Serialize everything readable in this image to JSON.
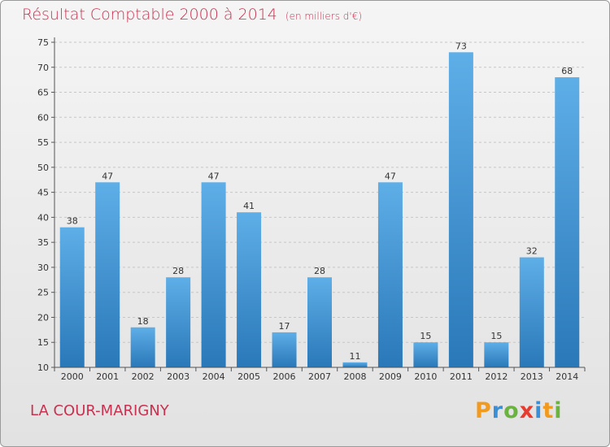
{
  "header": {
    "title": "Résultat Comptable 2000 à 2014",
    "unit": "(en milliers d'€)"
  },
  "footer": {
    "location": "LA COUR-MARIGNY",
    "logo_text": "Proxiti"
  },
  "colors": {
    "title": "#c8314f",
    "bar_top": "#5eaee8",
    "bar_bottom": "#2a78b8"
  },
  "chart_data": {
    "type": "bar",
    "title": "Résultat Comptable 2000 à 2014",
    "subtitle": "(en milliers d'€)",
    "xlabel": "",
    "ylabel": "",
    "categories": [
      "2000",
      "2001",
      "2002",
      "2003",
      "2004",
      "2005",
      "2006",
      "2007",
      "2008",
      "2009",
      "2010",
      "2011",
      "2012",
      "2013",
      "2014"
    ],
    "values": [
      38,
      47,
      18,
      28,
      47,
      41,
      17,
      28,
      11,
      47,
      15,
      73,
      15,
      32,
      68
    ],
    "ylim": [
      10,
      75
    ],
    "yticks": [
      10,
      15,
      20,
      25,
      30,
      35,
      40,
      45,
      50,
      55,
      60,
      65,
      70,
      75
    ],
    "grid": true
  }
}
